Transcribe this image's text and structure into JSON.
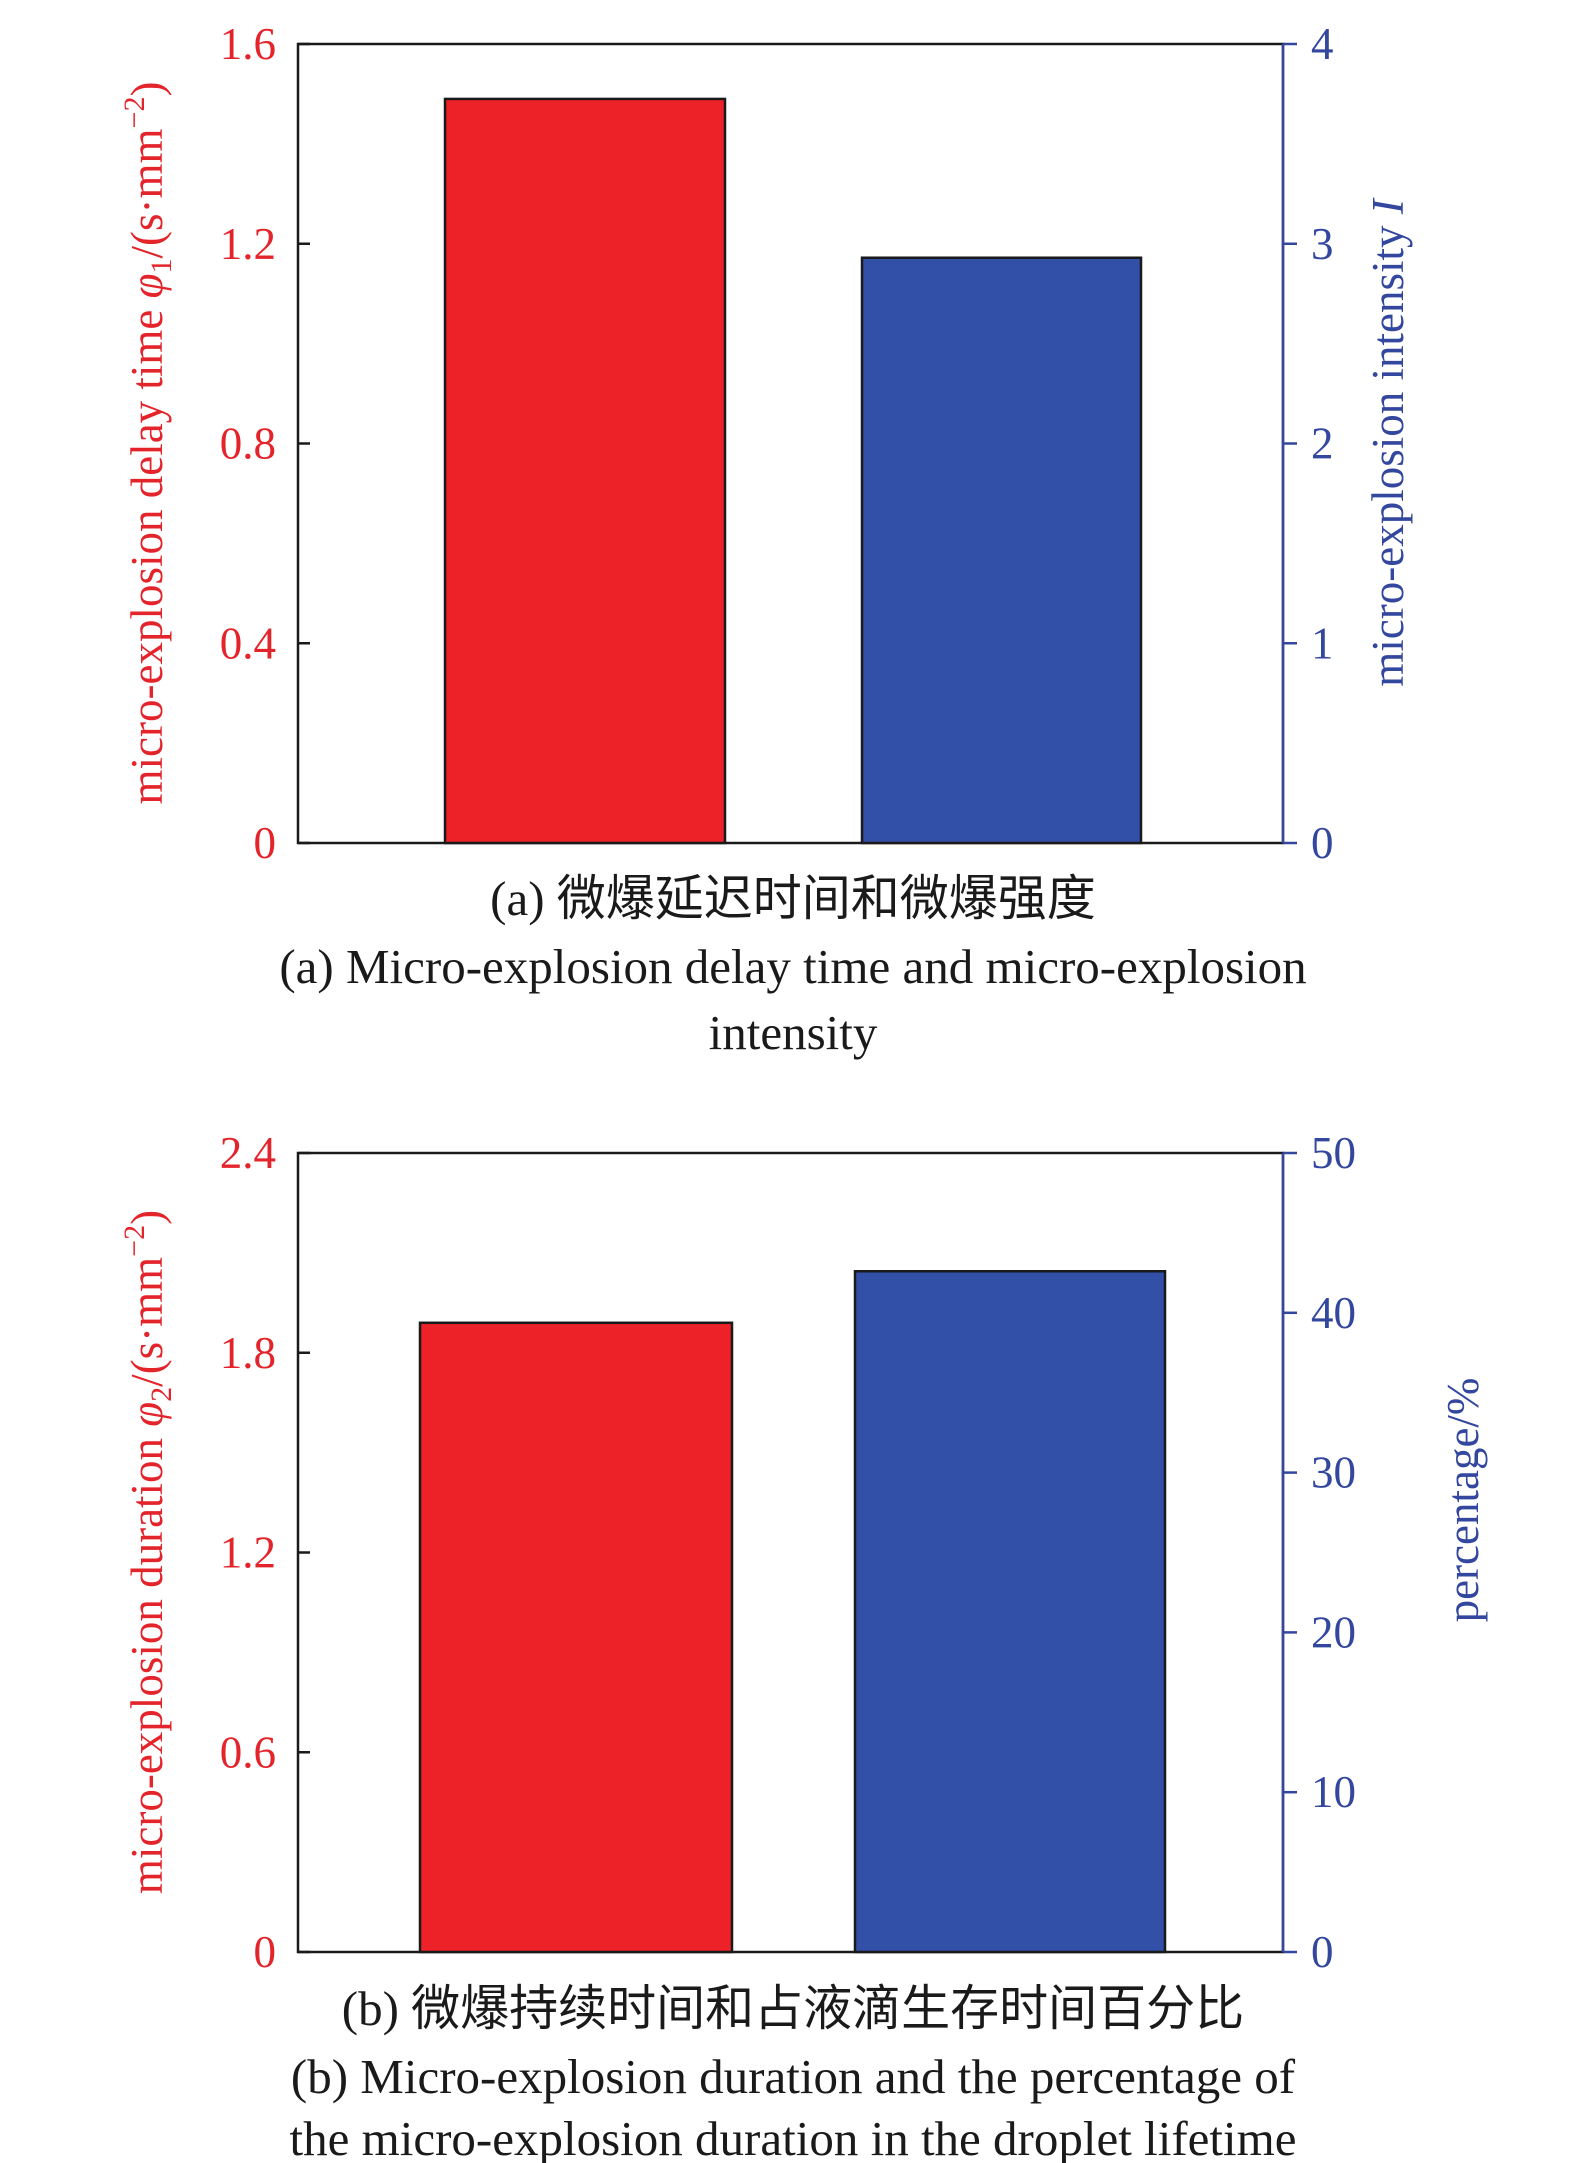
{
  "colors": {
    "left_axis": "#e3242b",
    "right_axis": "#33479e",
    "bar_left": "#ed2128",
    "bar_right": "#3350a8",
    "frame": "#1a1a1a"
  },
  "chart_data": [
    {
      "type": "bar",
      "panel": "a",
      "categories": [
        "",
        ""
      ],
      "series": [
        {
          "axis": "left",
          "values": [
            1.49,
            null
          ]
        },
        {
          "axis": "right",
          "values": [
            null,
            2.93
          ]
        }
      ],
      "left_axis": {
        "label_prefix": "micro-explosion delay time ",
        "label_symbol": "φ",
        "label_subscript": "1",
        "label_unit": "/(s·mm",
        "label_sup": "−2",
        "label_close": ")",
        "ylim": [
          0,
          1.6
        ],
        "ticks": [
          "0",
          "0.4",
          "0.8",
          "1.2",
          "1.6"
        ]
      },
      "right_axis": {
        "label_prefix": "micro-explosion intensity ",
        "label_symbol": "I",
        "ylim": [
          0,
          4
        ],
        "ticks": [
          "0",
          "1",
          "2",
          "3",
          "4"
        ]
      },
      "caption_cn": "(a) 微爆延迟时间和微爆强度",
      "caption_en_1": "(a) Micro-explosion delay time and micro-explosion",
      "caption_en_2": "intensity"
    },
    {
      "type": "bar",
      "panel": "b",
      "categories": [
        "",
        ""
      ],
      "series": [
        {
          "axis": "left",
          "values": [
            1.89,
            null
          ]
        },
        {
          "axis": "right",
          "values": [
            null,
            42.6
          ]
        }
      ],
      "left_axis": {
        "label_prefix": "micro-explosion duration ",
        "label_symbol": "φ",
        "label_subscript": "2",
        "label_unit": "/(s·mm",
        "label_sup": "−2",
        "label_close": ")",
        "ylim": [
          0,
          2.4
        ],
        "ticks": [
          "0",
          "0.6",
          "1.2",
          "1.8",
          "2.4"
        ]
      },
      "right_axis": {
        "label_prefix": "percentage/%",
        "label_symbol": "",
        "ylim": [
          0,
          50
        ],
        "ticks": [
          "0",
          "10",
          "20",
          "30",
          "40",
          "50"
        ]
      },
      "caption_cn": "(b) 微爆持续时间和占液滴生存时间百分比",
      "caption_en_1": "(b) Micro-explosion duration and the percentage of",
      "caption_en_2": "the micro-explosion duration in the droplet lifetime"
    }
  ]
}
